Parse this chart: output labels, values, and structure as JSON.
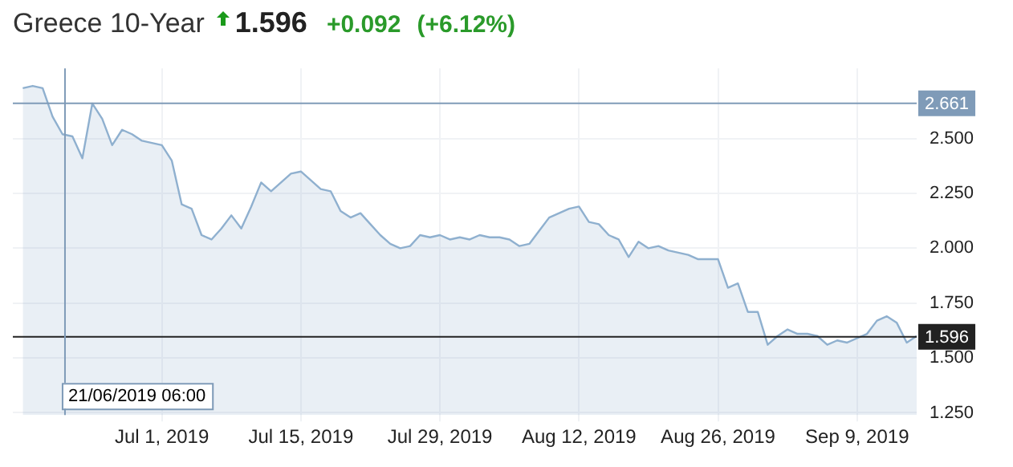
{
  "chart_data": {
    "type": "area",
    "title": "Greece 10-Year",
    "annotations": [
      "1.596",
      "+0.092",
      "(+6.12%)"
    ],
    "x": [
      "2019-06-17",
      "2019-06-18",
      "2019-06-19",
      "2019-06-20",
      "2019-06-21",
      "2019-06-22",
      "2019-06-23",
      "2019-06-24",
      "2019-06-25",
      "2019-06-26",
      "2019-06-27",
      "2019-06-28",
      "2019-06-29",
      "2019-06-30",
      "2019-07-01",
      "2019-07-02",
      "2019-07-03",
      "2019-07-04",
      "2019-07-05",
      "2019-07-06",
      "2019-07-07",
      "2019-07-08",
      "2019-07-09",
      "2019-07-10",
      "2019-07-11",
      "2019-07-12",
      "2019-07-13",
      "2019-07-14",
      "2019-07-15",
      "2019-07-16",
      "2019-07-17",
      "2019-07-18",
      "2019-07-19",
      "2019-07-20",
      "2019-07-21",
      "2019-07-22",
      "2019-07-23",
      "2019-07-24",
      "2019-07-25",
      "2019-07-26",
      "2019-07-27",
      "2019-07-28",
      "2019-07-29",
      "2019-07-30",
      "2019-07-31",
      "2019-08-01",
      "2019-08-02",
      "2019-08-03",
      "2019-08-04",
      "2019-08-05",
      "2019-08-06",
      "2019-08-07",
      "2019-08-08",
      "2019-08-09",
      "2019-08-10",
      "2019-08-11",
      "2019-08-12",
      "2019-08-13",
      "2019-08-14",
      "2019-08-15",
      "2019-08-16",
      "2019-08-17",
      "2019-08-18",
      "2019-08-19",
      "2019-08-20",
      "2019-08-21",
      "2019-08-22",
      "2019-08-23",
      "2019-08-24",
      "2019-08-25",
      "2019-08-26",
      "2019-08-27",
      "2019-08-28",
      "2019-08-29",
      "2019-08-30",
      "2019-08-31",
      "2019-09-01",
      "2019-09-02",
      "2019-09-03",
      "2019-09-04",
      "2019-09-05",
      "2019-09-06",
      "2019-09-07",
      "2019-09-08",
      "2019-09-09",
      "2019-09-10",
      "2019-09-11",
      "2019-09-12",
      "2019-09-13",
      "2019-09-14",
      "2019-09-15"
    ],
    "series": [
      {
        "color": "#8fb0cf",
        "values": [
          2.73,
          2.74,
          2.73,
          2.6,
          2.52,
          2.51,
          2.41,
          2.66,
          2.59,
          2.47,
          2.54,
          2.52,
          2.49,
          2.48,
          2.47,
          2.4,
          2.2,
          2.18,
          2.06,
          2.04,
          2.09,
          2.15,
          2.09,
          2.19,
          2.3,
          2.26,
          2.3,
          2.34,
          2.35,
          2.31,
          2.27,
          2.26,
          2.17,
          2.14,
          2.16,
          2.11,
          2.06,
          2.02,
          2.0,
          2.01,
          2.06,
          2.05,
          2.06,
          2.04,
          2.05,
          2.04,
          2.06,
          2.05,
          2.05,
          2.04,
          2.01,
          2.02,
          2.08,
          2.14,
          2.16,
          2.18,
          2.19,
          2.12,
          2.11,
          2.06,
          2.04,
          1.96,
          2.03,
          2.0,
          2.01,
          1.99,
          1.98,
          1.97,
          1.95,
          1.95,
          1.95,
          1.82,
          1.84,
          1.71,
          1.71,
          1.56,
          1.6,
          1.63,
          1.61,
          1.61,
          1.6,
          1.56,
          1.58,
          1.57,
          1.59,
          1.61,
          1.67,
          1.69,
          1.66,
          1.57,
          1.6
        ]
      }
    ],
    "xlim": [
      "2019-06-16",
      "2019-09-15"
    ],
    "xticks": [
      {
        "value": "2019-07-01",
        "label": "Jul 1, 2019"
      },
      {
        "value": "2019-07-15",
        "label": "Jul 15, 2019"
      },
      {
        "value": "2019-07-29",
        "label": "Jul 29, 2019"
      },
      {
        "value": "2019-08-12",
        "label": "Aug 12, 2019"
      },
      {
        "value": "2019-08-26",
        "label": "Aug 26, 2019"
      },
      {
        "value": "2019-09-09",
        "label": "Sep 9, 2019"
      }
    ],
    "ylim": [
      1.24,
      2.82
    ],
    "yticks": [
      {
        "value": 1.25,
        "label": "1.250"
      },
      {
        "value": 1.5,
        "label": "1.500"
      },
      {
        "value": 1.75,
        "label": "1.750"
      },
      {
        "value": 2,
        "label": "2.000"
      },
      {
        "value": 2.25,
        "label": "2.250"
      },
      {
        "value": 2.5,
        "label": "2.500"
      }
    ],
    "ref_lines": [
      {
        "axis": "y",
        "value": 2.661,
        "label": "2.661",
        "color": "#7f9bb8"
      },
      {
        "axis": "y",
        "value": 1.596,
        "label": "1.596",
        "color": "#222222"
      },
      {
        "axis": "x",
        "value": "2019-06-21T06:00",
        "label": "21/06/2019 06:00",
        "color": "#7f9bb8"
      }
    ],
    "grid": true,
    "legend": false,
    "marker": "none",
    "line_style": "solid"
  }
}
